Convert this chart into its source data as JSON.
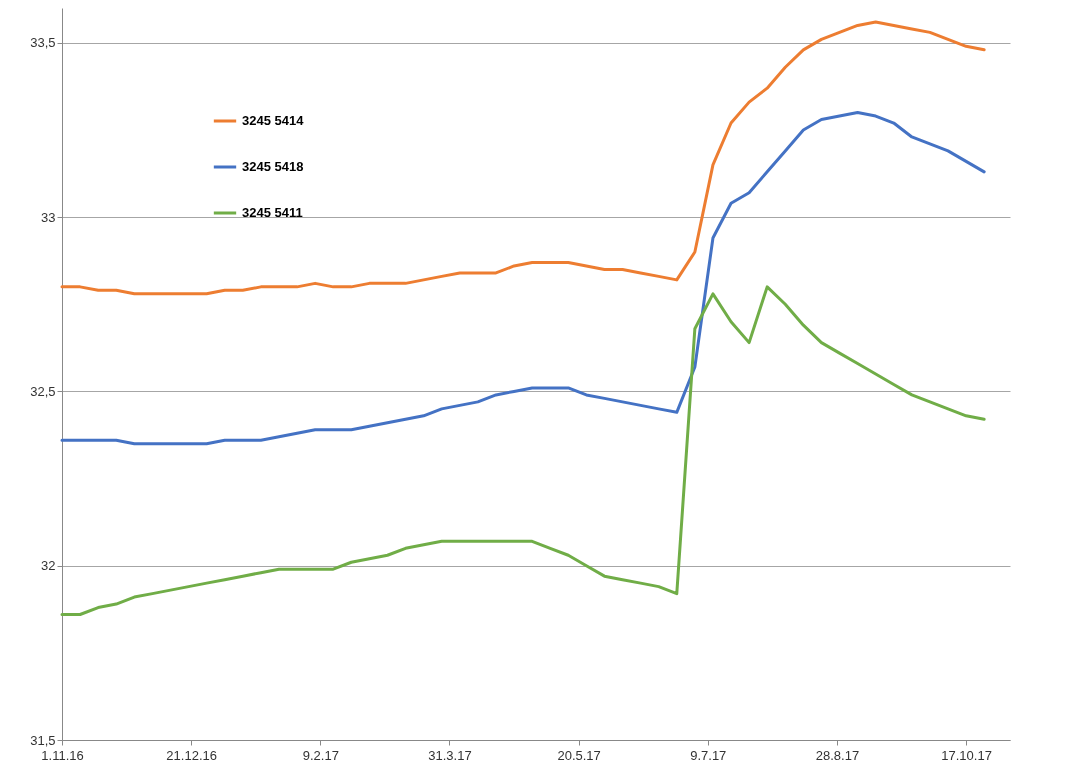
{
  "chart_data": {
    "type": "line",
    "x": [
      "2016-11-01",
      "2016-11-08",
      "2016-11-15",
      "2016-11-22",
      "2016-11-29",
      "2016-12-06",
      "2016-12-13",
      "2016-12-20",
      "2016-12-27",
      "2017-01-03",
      "2017-01-10",
      "2017-01-17",
      "2017-01-24",
      "2017-01-31",
      "2017-02-07",
      "2017-02-14",
      "2017-02-21",
      "2017-02-28",
      "2017-03-07",
      "2017-03-14",
      "2017-03-21",
      "2017-03-28",
      "2017-04-04",
      "2017-04-11",
      "2017-04-18",
      "2017-04-25",
      "2017-05-02",
      "2017-05-09",
      "2017-05-16",
      "2017-05-23",
      "2017-05-30",
      "2017-06-06",
      "2017-06-13",
      "2017-06-20",
      "2017-06-27",
      "2017-07-04",
      "2017-07-11",
      "2017-07-18",
      "2017-07-25",
      "2017-08-01",
      "2017-08-08",
      "2017-08-15",
      "2017-08-22",
      "2017-08-29",
      "2017-09-05",
      "2017-09-12",
      "2017-09-19",
      "2017-09-26",
      "2017-10-03",
      "2017-10-10",
      "2017-10-17",
      "2017-10-24"
    ],
    "series": [
      {
        "name": "3245 5414",
        "color": "#ed7d31",
        "values": [
          32.8,
          32.8,
          32.79,
          32.79,
          32.78,
          32.78,
          32.78,
          32.78,
          32.78,
          32.79,
          32.79,
          32.8,
          32.8,
          32.8,
          32.81,
          32.8,
          32.8,
          32.81,
          32.81,
          32.81,
          32.82,
          32.83,
          32.84,
          32.84,
          32.84,
          32.86,
          32.87,
          32.87,
          32.87,
          32.86,
          32.85,
          32.85,
          32.84,
          32.83,
          32.82,
          32.9,
          33.15,
          33.27,
          33.33,
          33.37,
          33.43,
          33.48,
          33.51,
          33.53,
          33.55,
          33.56,
          33.55,
          33.54,
          33.53,
          33.51,
          33.49,
          33.48
        ]
      },
      {
        "name": "3245 5418",
        "color": "#4472c4",
        "values": [
          32.36,
          32.36,
          32.36,
          32.36,
          32.35,
          32.35,
          32.35,
          32.35,
          32.35,
          32.36,
          32.36,
          32.36,
          32.37,
          32.38,
          32.39,
          32.39,
          32.39,
          32.4,
          32.41,
          32.42,
          32.43,
          32.45,
          32.46,
          32.47,
          32.49,
          32.5,
          32.51,
          32.51,
          32.51,
          32.49,
          32.48,
          32.47,
          32.46,
          32.45,
          32.44,
          32.57,
          32.94,
          33.04,
          33.07,
          33.13,
          33.19,
          33.25,
          33.28,
          33.29,
          33.3,
          33.29,
          33.27,
          33.23,
          33.21,
          33.19,
          33.16,
          33.13
        ]
      },
      {
        "name": "3245 5411",
        "color": "#70ad47",
        "values": [
          31.86,
          31.86,
          31.88,
          31.89,
          31.91,
          31.92,
          31.93,
          31.94,
          31.95,
          31.96,
          31.97,
          31.98,
          31.99,
          31.99,
          31.99,
          31.99,
          32.01,
          32.02,
          32.03,
          32.05,
          32.06,
          32.07,
          32.07,
          32.07,
          32.07,
          32.07,
          32.07,
          32.05,
          32.03,
          32.0,
          31.97,
          31.96,
          31.95,
          31.94,
          31.92,
          32.68,
          32.78,
          32.7,
          32.64,
          32.8,
          32.75,
          32.69,
          32.64,
          32.61,
          32.58,
          32.55,
          32.52,
          32.49,
          32.47,
          32.45,
          32.43,
          32.42
        ]
      }
    ],
    "xlim": [
      "2016-11-01",
      "2017-11-03"
    ],
    "xticks": [
      {
        "value": "2016-11-01",
        "label": "1.11.16"
      },
      {
        "value": "2016-12-21",
        "label": "21.12.16"
      },
      {
        "value": "2017-02-09",
        "label": "9.2.17"
      },
      {
        "value": "2017-03-31",
        "label": "31.3.17"
      },
      {
        "value": "2017-05-20",
        "label": "20.5.17"
      },
      {
        "value": "2017-07-09",
        "label": "9.7.17"
      },
      {
        "value": "2017-08-28",
        "label": "28.8.17"
      },
      {
        "value": "2017-10-17",
        "label": "17.10.17"
      }
    ],
    "ylim": [
      31.5,
      33.6
    ],
    "yticks": [
      {
        "value": 31.5,
        "label": "31,5"
      },
      32,
      {
        "value": 32.5,
        "label": "32,5"
      },
      33,
      {
        "value": 33.5,
        "label": "33,5"
      }
    ],
    "grid": "y",
    "legend": "top left",
    "marker": "none",
    "line_style": "solid"
  }
}
